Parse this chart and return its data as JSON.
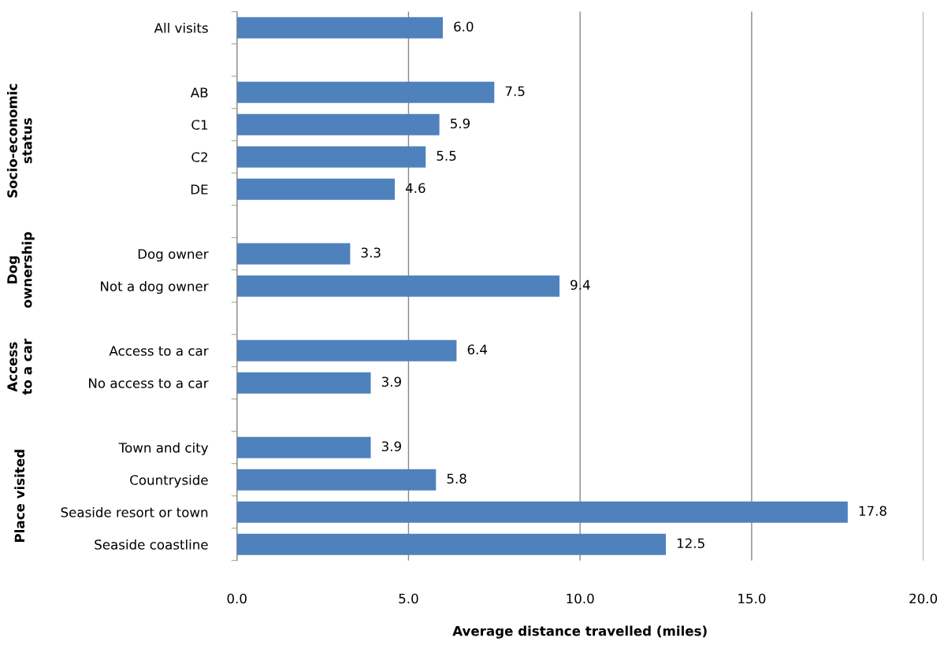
{
  "chart_data": {
    "type": "bar",
    "orientation": "horizontal",
    "categories": [
      "All visits",
      null,
      "AB",
      "C1",
      "C2",
      "DE",
      null,
      "Dog owner",
      "Not a dog owner",
      null,
      "Access to a car",
      "No access to a car",
      null,
      "Town and city",
      "Countryside",
      "Seaside resort or town",
      "Seaside coastline"
    ],
    "values": [
      6.0,
      null,
      7.5,
      5.9,
      5.5,
      4.6,
      null,
      3.3,
      9.4,
      null,
      6.4,
      3.9,
      null,
      3.9,
      5.8,
      17.8,
      12.5
    ],
    "value_labels": [
      "6.0",
      null,
      "7.5",
      "5.9",
      "5.5",
      "4.6",
      null,
      "3.3",
      "9.4",
      null,
      "6.4",
      "3.9",
      null,
      "3.9",
      "5.8",
      "17.8",
      "12.5"
    ],
    "color": "#4f81bd",
    "xlabel": "Average distance travelled (miles)",
    "xlim": [
      0,
      20
    ],
    "xticks": [
      {
        "value": 0,
        "label": "0.0"
      },
      {
        "value": 5,
        "label": "5.0"
      },
      {
        "value": 10,
        "label": "10.0"
      },
      {
        "value": 15,
        "label": "15.0"
      },
      {
        "value": 20,
        "label": "20.0"
      }
    ],
    "grid": "x",
    "annotations": [
      "Socio-economic\nstatus",
      "Dog\nownership",
      "Access\nto a car",
      "Place visited"
    ]
  }
}
